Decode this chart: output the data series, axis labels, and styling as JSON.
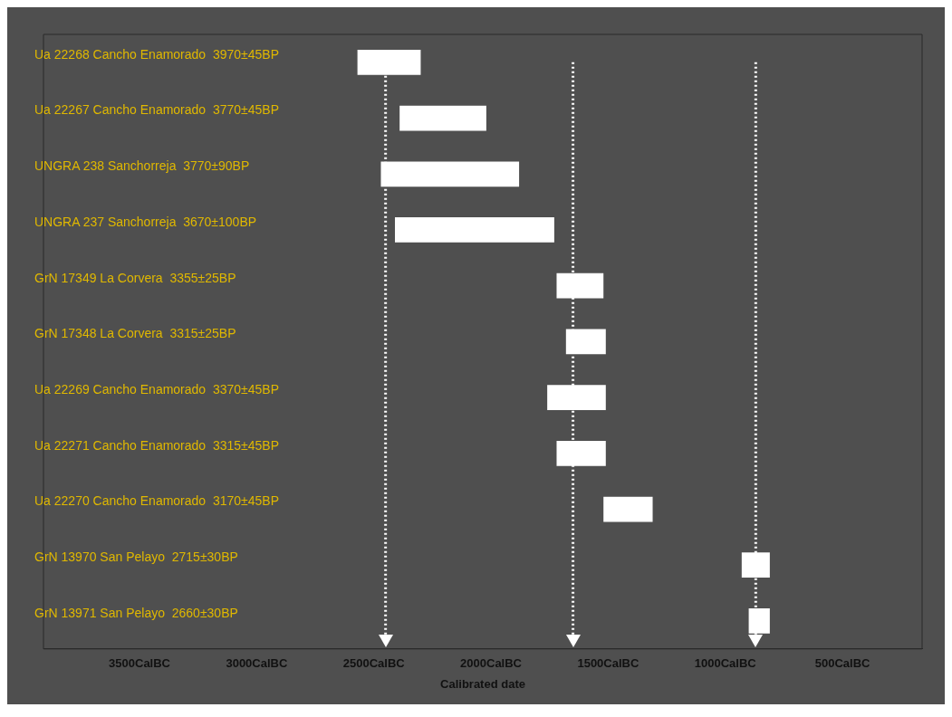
{
  "chart_data": {
    "type": "bar",
    "orientation": "horizontal",
    "xlabel": "Calibrated date",
    "categories": [
      "Ua 22268 Cancho Enamorado  3970±45BP",
      "Ua 22267 Cancho Enamorado  3770±45BP",
      "UNGRA 238 Sanchorreja  3770±90BP",
      "UNGRA 237 Sanchorreja  3670±100BP",
      "GrN 17349 La Corvera  3355±25BP",
      "GrN 17348 La Corvera  3315±25BP",
      "Ua 22269 Cancho Enamorado  3370±45BP",
      "Ua 22271 Cancho Enamorado  3315±45BP",
      "Ua 22270 Cancho Enamorado  3170±45BP",
      "GrN 13970 San Pelayo  2715±30BP",
      "GrN 13971 San Pelayo  2660±30BP"
    ],
    "base": [
      2300,
      2020,
      1880,
      1730,
      1520,
      1510,
      1510,
      1510,
      1310,
      810,
      810
    ],
    "values": [
      270,
      370,
      590,
      680,
      200,
      170,
      250,
      210,
      210,
      120,
      90
    ],
    "color": "#ffffff",
    "xlim": [
      3910,
      160
    ],
    "xticks": [
      {
        "value": 3500,
        "label": "3500CalBC"
      },
      {
        "value": 3000,
        "label": "3000CalBC"
      },
      {
        "value": 2500,
        "label": "2500CalBC"
      },
      {
        "value": 2000,
        "label": "2000CalBC"
      },
      {
        "value": 1500,
        "label": "1500CalBC"
      },
      {
        "value": 1000,
        "label": "1000CalBC"
      },
      {
        "value": 500,
        "label": "500CalBC"
      }
    ],
    "ref_lines": [
      {
        "axis": "x",
        "value": 2450,
        "color": "#ffffff",
        "line_style": "dotted"
      },
      {
        "axis": "x",
        "value": 1650,
        "color": "#ffffff",
        "line_style": "dotted"
      },
      {
        "axis": "x",
        "value": 870,
        "color": "#ffffff",
        "line_style": "dotted"
      }
    ],
    "grid": false,
    "legend": false
  }
}
